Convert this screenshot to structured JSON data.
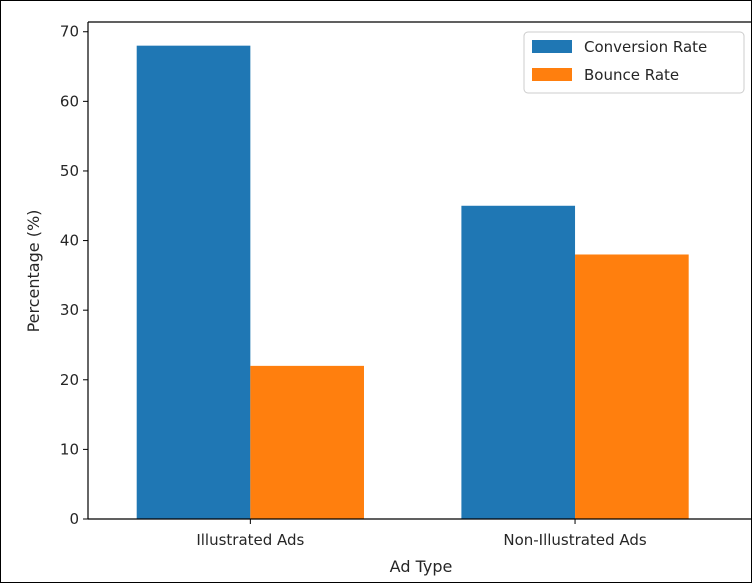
{
  "chart_data": {
    "type": "bar",
    "title": "",
    "xlabel": "Ad Type",
    "ylabel": "Percentage (%)",
    "categories": [
      "Illustrated Ads",
      "Non-Illustrated Ads"
    ],
    "series": [
      {
        "name": "Conversion Rate",
        "values": [
          68,
          45
        ],
        "color": "#1f77b4"
      },
      {
        "name": "Bounce Rate",
        "values": [
          22,
          38
        ],
        "color": "#ff7f0e"
      }
    ],
    "ylim": [
      0,
      71.4
    ],
    "yticks": [
      0,
      10,
      20,
      30,
      40,
      50,
      60,
      70
    ],
    "grid": false,
    "legend_position": "top-right"
  }
}
